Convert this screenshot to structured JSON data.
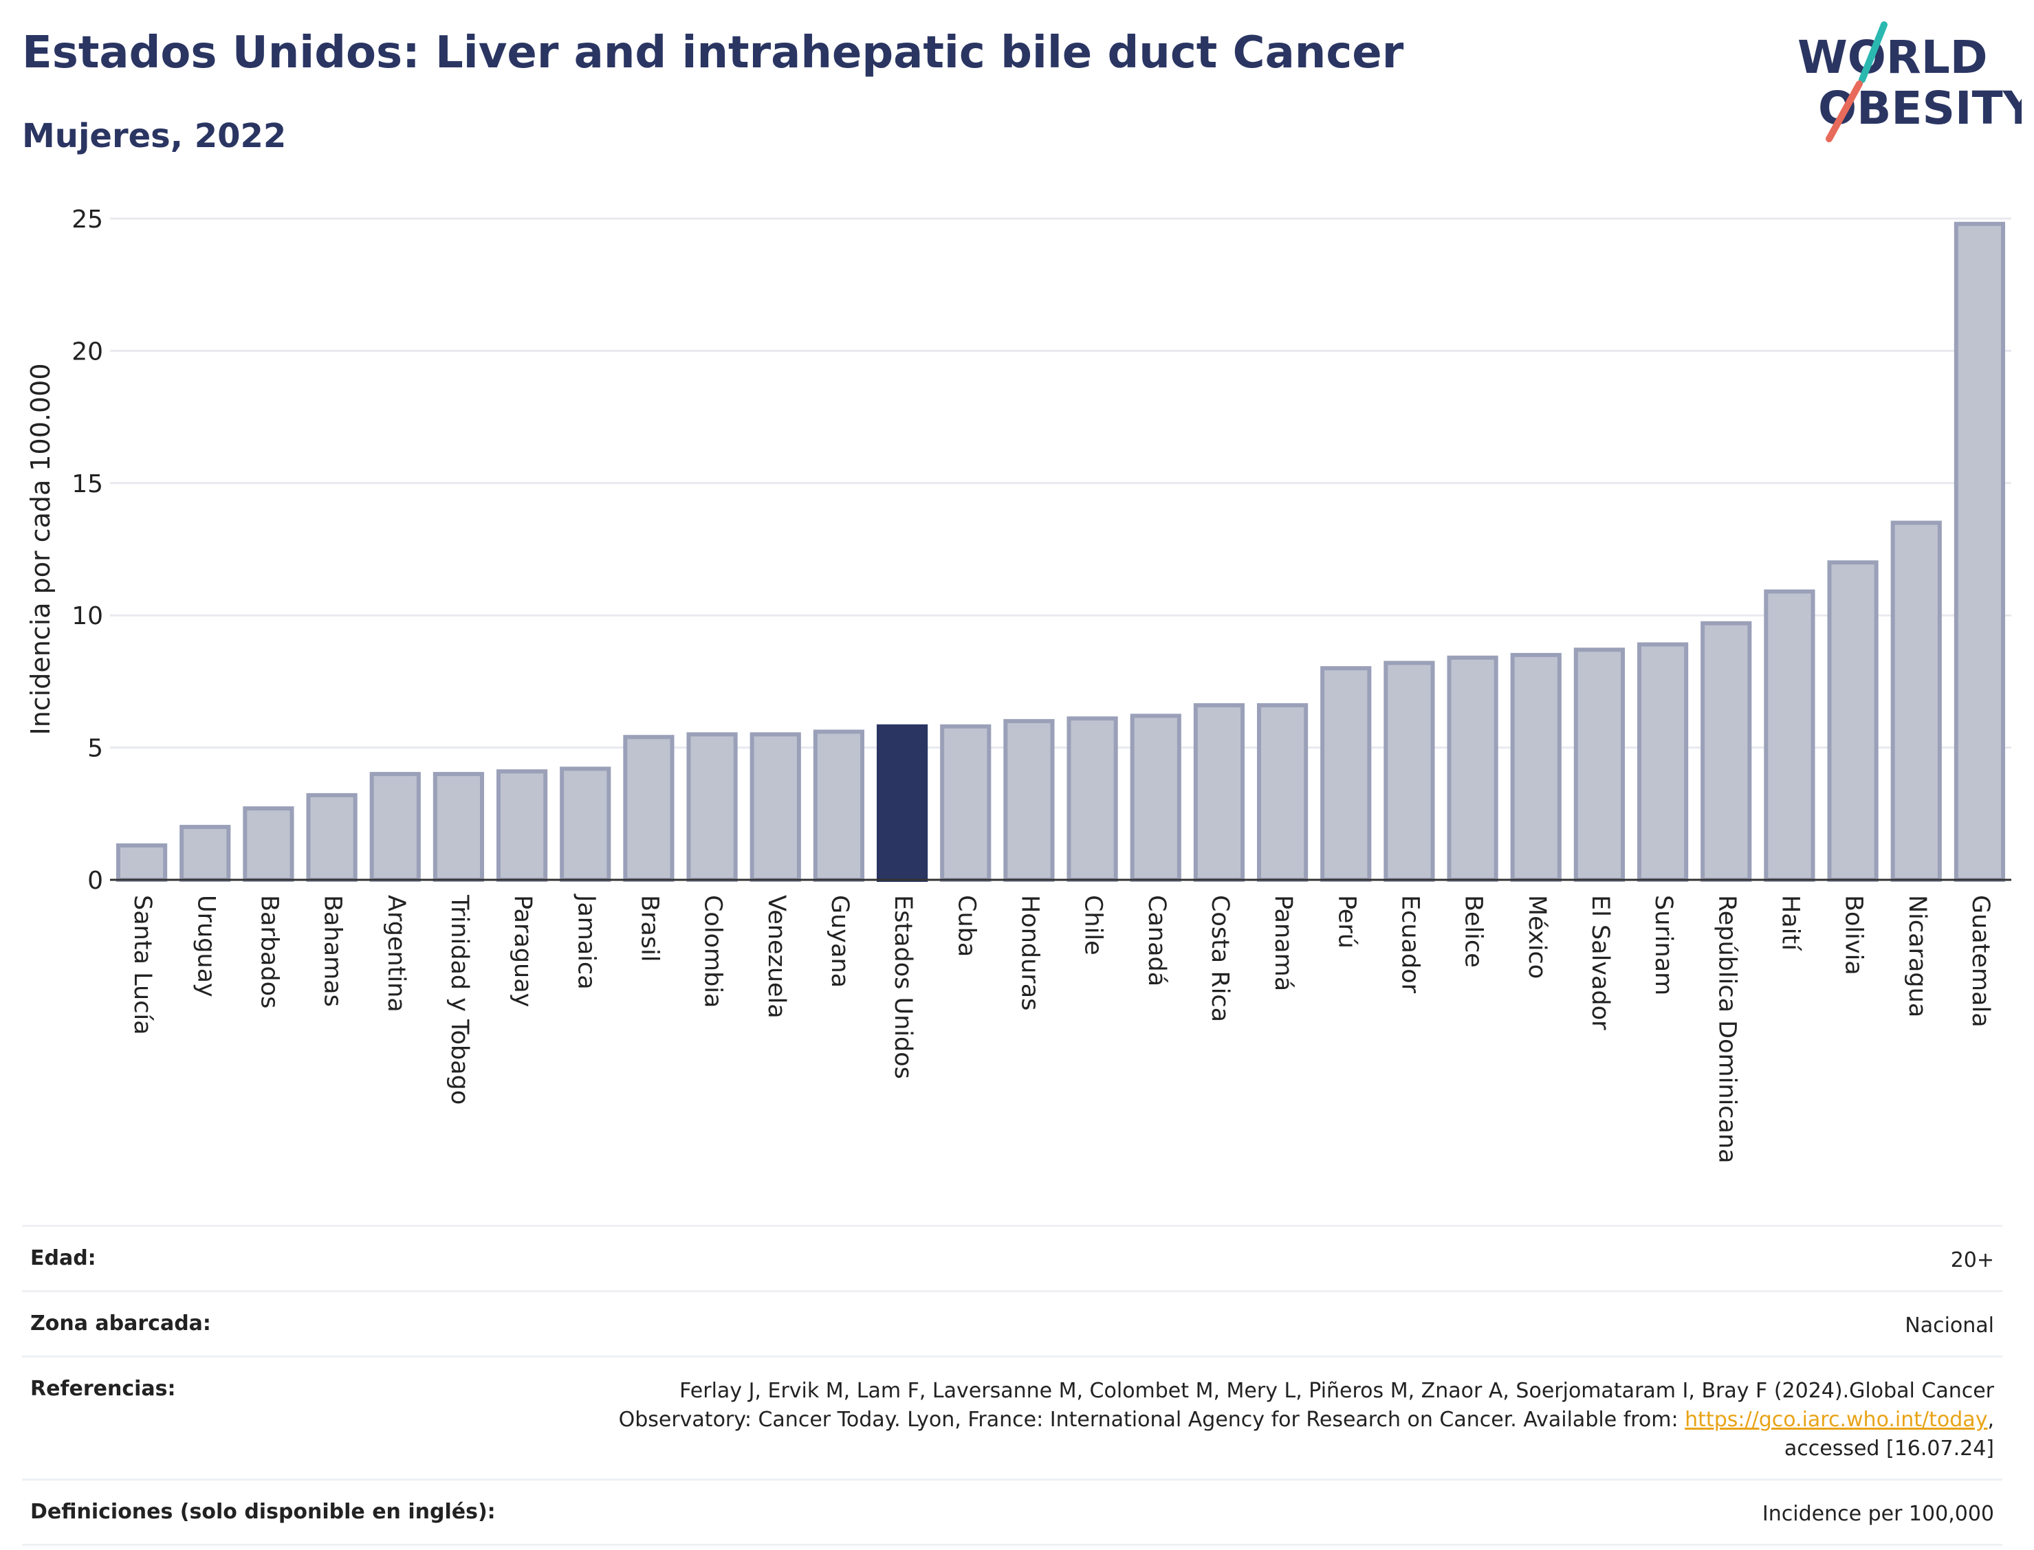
{
  "header": {
    "title": "Estados Unidos: Liver and intrahepatic bile duct Cancer",
    "subtitle": "Mujeres, 2022"
  },
  "logo": {
    "line1": "WORLD",
    "line2": "OBESITY"
  },
  "chart_data": {
    "type": "bar",
    "ylabel": "Incidencia por cada 100.000",
    "ylim": [
      0,
      25
    ],
    "yticks": [
      "0",
      "5",
      "10",
      "15",
      "20",
      "25"
    ],
    "grid": true,
    "highlight": "Estados Unidos",
    "colors": {
      "bar": "#bfc3d0",
      "bar_border": "#9aa0b8",
      "highlight": "#2a3562"
    },
    "categories": [
      "Santa Lucía",
      "Uruguay",
      "Barbados",
      "Bahamas",
      "Argentina",
      "Trinidad y Tobago",
      "Paraguay",
      "Jamaica",
      "Brasil",
      "Colombia",
      "Venezuela",
      "Guyana",
      "Estados Unidos",
      "Cuba",
      "Honduras",
      "Chile",
      "Canadá",
      "Costa Rica",
      "Panamá",
      "Perú",
      "Ecuador",
      "Belice",
      "México",
      "El Salvador",
      "Surinam",
      "República Dominicana",
      "Haití",
      "Bolivia",
      "Nicaragua",
      "Guatemala"
    ],
    "values": [
      1.3,
      2.0,
      2.7,
      3.2,
      4.0,
      4.0,
      4.1,
      4.2,
      5.4,
      5.5,
      5.5,
      5.6,
      5.8,
      5.8,
      6.0,
      6.1,
      6.2,
      6.6,
      6.6,
      8.0,
      8.2,
      8.4,
      8.5,
      8.7,
      8.9,
      9.7,
      10.9,
      12.0,
      13.5,
      24.8
    ]
  },
  "meta": {
    "age_label": "Edad:",
    "age_value": "20+",
    "zone_label": "Zona abarcada:",
    "zone_value": "Nacional",
    "ref_label": "Referencias:",
    "ref_text_1": "Ferlay J, Ervik M, Lam F, Laversanne M, Colombet M, Mery L, Piñeros M, Znaor A, Soerjomataram I, Bray F (2024).Global Cancer Observatory: Cancer Today. Lyon, France: International Agency for Research on Cancer. Available from: ",
    "ref_link": "https://gco.iarc.who.int/today",
    "ref_text_2": ", accessed [16.07.24]",
    "def_label": "Definiciones (solo disponible en inglés):",
    "def_value": "Incidence per 100,000"
  }
}
